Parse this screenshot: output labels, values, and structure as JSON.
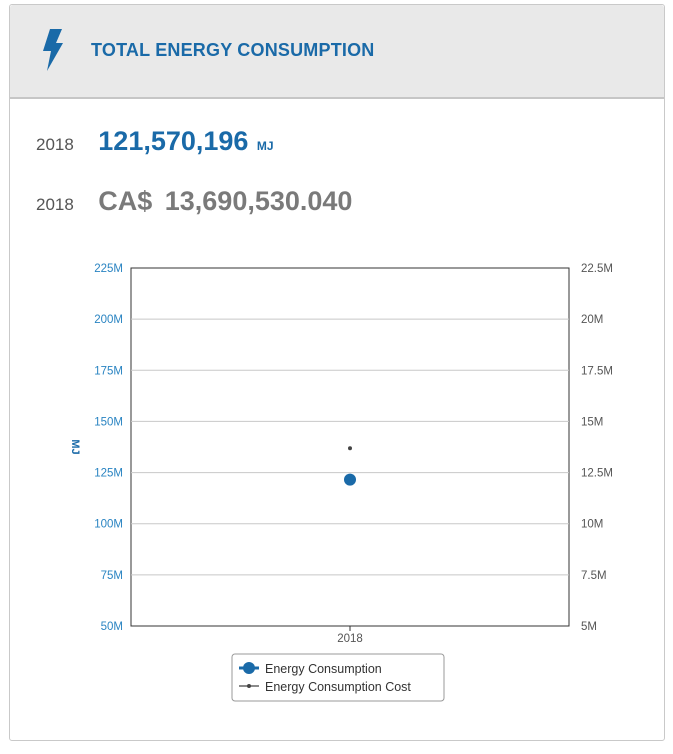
{
  "header": {
    "title": "TOTAL ENERGY CONSUMPTION",
    "icon": "lightning-bolt-icon"
  },
  "stats": [
    {
      "year": "2018",
      "value": "121,570,196",
      "unit": "MJ"
    },
    {
      "year": "2018",
      "prefix": "CA$",
      "value": "13,690,530.040"
    }
  ],
  "colors": {
    "primary": "#1a6aa8",
    "secondary": "#444444",
    "grid": "#c8c8c8"
  },
  "chart_data": {
    "type": "scatter",
    "categories": [
      "2018"
    ],
    "ylabel": "MJ",
    "y_left": {
      "ticks": [
        "225M",
        "200M",
        "175M",
        "150M",
        "125M",
        "100M",
        "75M",
        "50M"
      ],
      "ylim": [
        50000000,
        225000000
      ]
    },
    "y_right": {
      "ticks": [
        "22.5M",
        "20M",
        "17.5M",
        "15M",
        "12.5M",
        "10M",
        "7.5M",
        "5M"
      ],
      "ylim": [
        5000000,
        22500000
      ]
    },
    "grid": true,
    "legend_position": "bottom",
    "series": [
      {
        "name": "Energy Consumption",
        "axis": "left",
        "values": [
          121570196
        ],
        "color": "#1a6aa8"
      },
      {
        "name": "Energy Consumption Cost",
        "axis": "right",
        "values": [
          13690530.04
        ],
        "color": "#444444"
      }
    ]
  }
}
